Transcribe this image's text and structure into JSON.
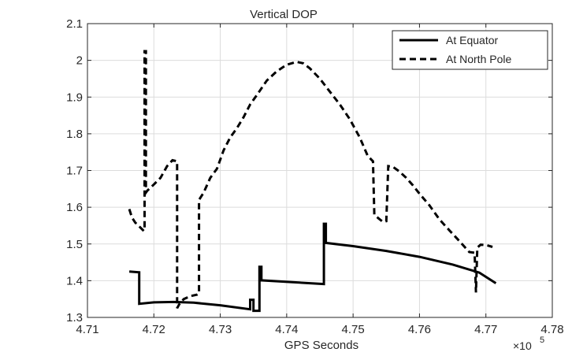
{
  "chart_data": {
    "type": "line",
    "title": "Vertical DOP",
    "xlabel": "GPS Seconds",
    "ylabel": "",
    "x_exponent_label": "×10",
    "x_exponent_power": "5",
    "xlim": [
      4.71,
      4.78
    ],
    "ylim": [
      1.3,
      2.1
    ],
    "x_ticks": [
      "4.71",
      "4.72",
      "4.73",
      "4.74",
      "4.75",
      "4.76",
      "4.77",
      "4.78"
    ],
    "y_ticks": [
      "1.3",
      "1.4",
      "1.5",
      "1.6",
      "1.7",
      "1.8",
      "1.9",
      "2",
      "2.1"
    ],
    "grid": true,
    "legend_position": "top-right",
    "series": [
      {
        "name": "At Equator",
        "style": "solid",
        "color": "#000000",
        "points": [
          [
            4.7163,
            1.425
          ],
          [
            4.7178,
            1.423
          ],
          [
            4.7178,
            1.337
          ],
          [
            4.72,
            1.341
          ],
          [
            4.723,
            1.342
          ],
          [
            4.726,
            1.34
          ],
          [
            4.73,
            1.333
          ],
          [
            4.7345,
            1.322
          ],
          [
            4.7345,
            1.348
          ],
          [
            4.735,
            1.348
          ],
          [
            4.735,
            1.318
          ],
          [
            4.7359,
            1.318
          ],
          [
            4.7359,
            1.438
          ],
          [
            4.7362,
            1.438
          ],
          [
            4.7362,
            1.401
          ],
          [
            4.7456,
            1.391
          ],
          [
            4.7456,
            1.555
          ],
          [
            4.7459,
            1.555
          ],
          [
            4.7459,
            1.503
          ],
          [
            4.75,
            1.494
          ],
          [
            4.755,
            1.481
          ],
          [
            4.76,
            1.465
          ],
          [
            4.765,
            1.444
          ],
          [
            4.769,
            1.422
          ],
          [
            4.7715,
            1.393
          ]
        ]
      },
      {
        "name": "At North Pole",
        "style": "dashed",
        "color": "#000000",
        "points": [
          [
            4.7163,
            1.595
          ],
          [
            4.7167,
            1.572
          ],
          [
            4.7172,
            1.558
          ],
          [
            4.7178,
            1.548
          ],
          [
            4.7185,
            1.535
          ],
          [
            4.7186,
            1.545
          ],
          [
            4.7186,
            2.025
          ],
          [
            4.7188,
            2.025
          ],
          [
            4.7188,
            1.64
          ],
          [
            4.719,
            1.645
          ],
          [
            4.72,
            1.662
          ],
          [
            4.721,
            1.68
          ],
          [
            4.722,
            1.712
          ],
          [
            4.7228,
            1.728
          ],
          [
            4.7235,
            1.725
          ],
          [
            4.7235,
            1.325
          ],
          [
            4.7238,
            1.335
          ],
          [
            4.7245,
            1.35
          ],
          [
            4.7255,
            1.358
          ],
          [
            4.7265,
            1.362
          ],
          [
            4.7268,
            1.365
          ],
          [
            4.7268,
            1.62
          ],
          [
            4.7275,
            1.64
          ],
          [
            4.7285,
            1.68
          ],
          [
            4.7295,
            1.705
          ],
          [
            4.7305,
            1.755
          ],
          [
            4.7315,
            1.79
          ],
          [
            4.7325,
            1.815
          ],
          [
            4.7335,
            1.845
          ],
          [
            4.7345,
            1.88
          ],
          [
            4.7355,
            1.905
          ],
          [
            4.737,
            1.945
          ],
          [
            4.7385,
            1.97
          ],
          [
            4.74,
            1.988
          ],
          [
            4.7415,
            1.996
          ],
          [
            4.7425,
            1.992
          ],
          [
            4.7435,
            1.978
          ],
          [
            4.745,
            1.95
          ],
          [
            4.7465,
            1.915
          ],
          [
            4.748,
            1.88
          ],
          [
            4.7495,
            1.84
          ],
          [
            4.751,
            1.79
          ],
          [
            4.7522,
            1.74
          ],
          [
            4.753,
            1.725
          ],
          [
            4.7532,
            1.58
          ],
          [
            4.7538,
            1.57
          ],
          [
            4.7545,
            1.56
          ],
          [
            4.755,
            1.562
          ],
          [
            4.7553,
            1.712
          ],
          [
            4.756,
            1.71
          ],
          [
            4.757,
            1.697
          ],
          [
            4.758,
            1.68
          ],
          [
            4.759,
            1.66
          ],
          [
            4.76,
            1.637
          ],
          [
            4.7615,
            1.605
          ],
          [
            4.763,
            1.567
          ],
          [
            4.7645,
            1.537
          ],
          [
            4.766,
            1.508
          ],
          [
            4.7675,
            1.478
          ],
          [
            4.7683,
            1.476
          ],
          [
            4.7685,
            1.368
          ],
          [
            4.7687,
            1.49
          ],
          [
            4.7692,
            1.498
          ],
          [
            4.77,
            1.497
          ],
          [
            4.771,
            1.492
          ]
        ]
      }
    ]
  }
}
